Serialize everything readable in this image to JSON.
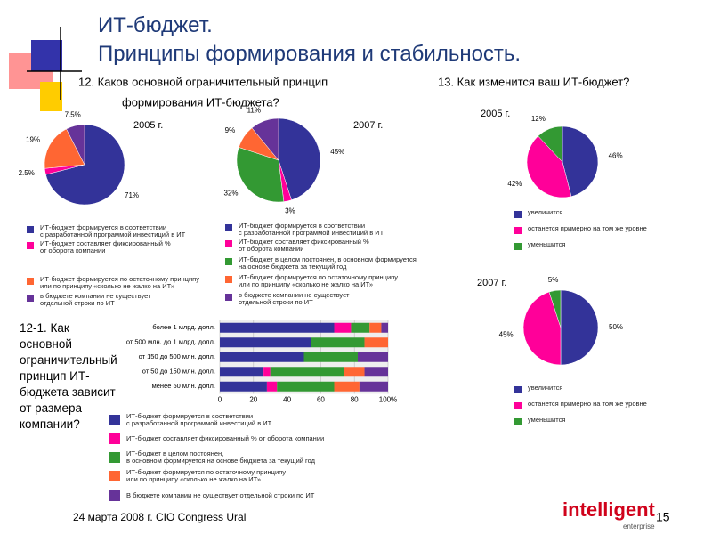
{
  "slide": {
    "title": "ИТ-бюджет.\nПринципы формирования и стабильность.",
    "q12": [
      "12. Каков основной ограничительный принцип",
      "формирования ИТ-бюджета?"
    ],
    "q13": "13. Как изменится ваш ИТ-бюджет?",
    "q12_1": "12-1. Как\nосновной\nограничительный\nпринцип ИТ-\nбюджета зависит\nот размера\nкомпании?",
    "footer": "24 марта 2008 г. CIO Congress Ural",
    "page": "15",
    "logo": "intelligent",
    "logo_sub": "enterprise"
  },
  "chart_data": [
    {
      "type": "pie",
      "title": "2005 г.",
      "categories": [
        "ИТ-бюджет формируется в соответствии\nс разработанной программой инвестиций в ИТ",
        "ИТ-бюджет составляет фиксированный %\nот оборота компании",
        "ИТ-бюджет формируется по остаточному принципу\nили по принципу «сколько не жалко на ИТ»",
        "в бюджете компании не существует\nотдельной строки по ИТ"
      ],
      "values": [
        71,
        2.5,
        19,
        7.5
      ],
      "value_labels": [
        "71%",
        "2.5%",
        "19%",
        "7.5%"
      ],
      "colors": [
        "#333399",
        "#ff0099",
        "#ff6633",
        "#663399"
      ]
    },
    {
      "type": "pie",
      "title": "2007 г.",
      "categories": [
        "ИТ-бюджет формируется в соответствии\nс разработанной программой инвестиций в ИТ",
        "ИТ-бюджет составляет фиксированный %\nот оборота компании",
        "ИТ-бюджет в целом постоянен, в основном формируется\nна основе бюджета за текущий год",
        "ИТ-бюджет формируется по остаточному принципу\nили по принципу «сколько не жалко на ИТ»",
        "в бюджете компании не существует\nотдельной строки по ИТ"
      ],
      "values": [
        45,
        3,
        32,
        9,
        11
      ],
      "value_labels": [
        "45%",
        "3%",
        "32%",
        "9%",
        "11%"
      ],
      "colors": [
        "#333399",
        "#ff0099",
        "#339933",
        "#ff6633",
        "#663399"
      ]
    },
    {
      "type": "pie",
      "title": "2005 г.",
      "categories": [
        "увеличится",
        "останется примерно на том же уровне",
        "уменьшится"
      ],
      "values": [
        46,
        42,
        12
      ],
      "value_labels": [
        "46%",
        "42%",
        "12%"
      ],
      "colors": [
        "#333399",
        "#ff0099",
        "#339933"
      ]
    },
    {
      "type": "pie",
      "title": "2007 г.",
      "categories": [
        "увеличится",
        "останется примерно на том же уровне",
        "уменьшится"
      ],
      "values": [
        50,
        45,
        5
      ],
      "value_labels": [
        "50%",
        "45%",
        "5%"
      ],
      "colors": [
        "#333399",
        "#ff0099",
        "#339933"
      ]
    },
    {
      "type": "bar",
      "orientation": "horizontal",
      "stacked": true,
      "grid": true,
      "categories": [
        "более 1 млрд. долл.",
        "от 500 млн. до 1 млрд. долл.",
        "от 150 до 500 млн. долл.",
        "от 50 до 150 млн. долл.",
        "менее 50 млн. долл."
      ],
      "series": [
        {
          "name": "ИТ-бюджет формируется в соответствии\nс разработанной программой инвестиций в ИТ",
          "color": "#333399",
          "values": [
            68,
            54,
            50,
            26,
            28
          ]
        },
        {
          "name": "ИТ-бюджет составляет фиксированный % от оборота компании",
          "color": "#ff0099",
          "values": [
            10,
            0,
            0,
            4,
            6
          ]
        },
        {
          "name": "ИТ-бюджет в целом постоянен,\nв основном формируется на основе бюджета за текущий год",
          "color": "#339933",
          "values": [
            11,
            32,
            32,
            44,
            34
          ]
        },
        {
          "name": "ИТ-бюджет формируется по остаточному принципу\nили по принципу «сколько не жалко на ИТ»",
          "color": "#ff6633",
          "values": [
            7,
            14,
            0,
            12,
            15
          ]
        },
        {
          "name": "В бюджете компании не существует отдельной строки по ИТ",
          "color": "#663399",
          "values": [
            4,
            0,
            18,
            14,
            17
          ]
        }
      ],
      "xlim": [
        0,
        100
      ],
      "xticks": [
        0,
        20,
        40,
        60,
        80,
        {
          "value": 100,
          "label": "100%"
        }
      ]
    }
  ]
}
